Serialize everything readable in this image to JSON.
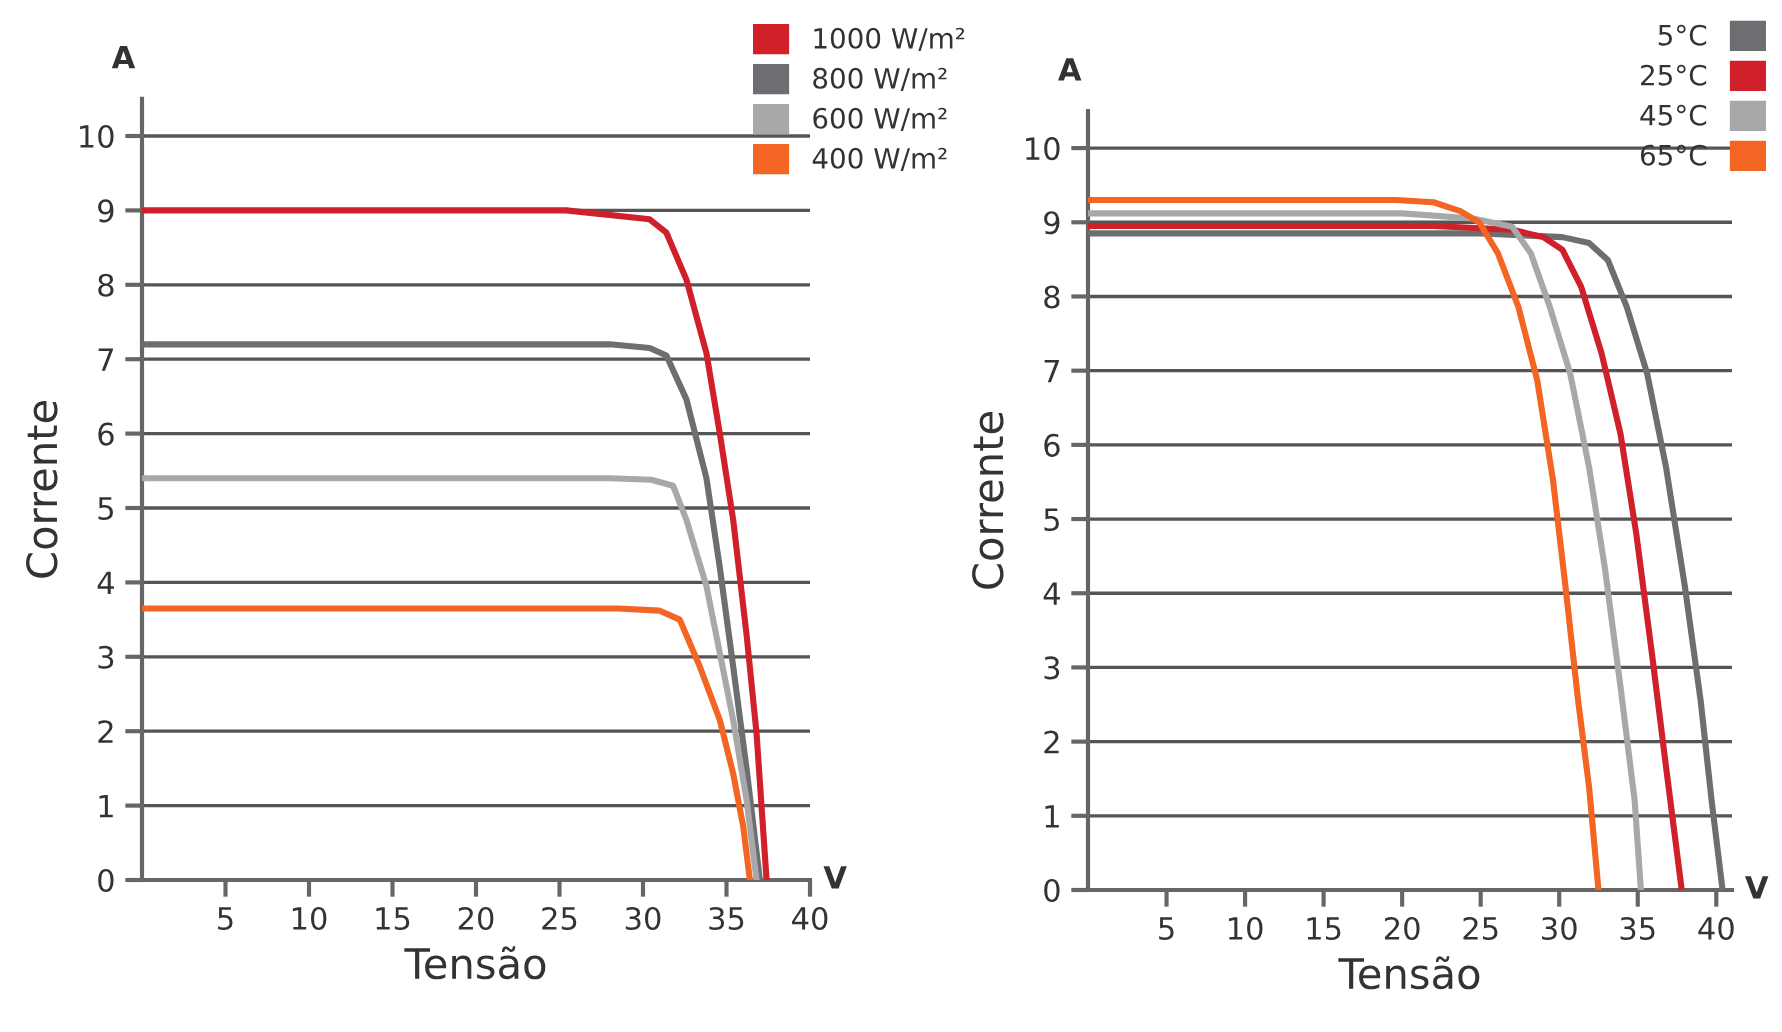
{
  "chart_data": [
    {
      "type": "line",
      "xlabel": "Tensão",
      "ylabel": "Corrente",
      "annotations": [
        "A",
        "V"
      ],
      "xlim": [
        0,
        40
      ],
      "ylim": [
        0,
        10.5
      ],
      "xticks": [
        5,
        10,
        15,
        20,
        25,
        30,
        35,
        40
      ],
      "yticks": [
        0,
        1,
        2,
        3,
        4,
        5,
        6,
        7,
        8,
        9,
        10
      ],
      "grid": "y",
      "legend": "top right",
      "marker": "none",
      "line_style": "solid",
      "series": [
        {
          "name": "1000 W/m²",
          "color": "#d0202a",
          "x": [
            0,
            25.4,
            30.4,
            31.4,
            32.6,
            33.8,
            34.6,
            35.4,
            36.2,
            36.8,
            37.4
          ],
          "values": [
            9.0,
            9.0,
            8.88,
            8.7,
            8.07,
            7.08,
            6.0,
            4.84,
            3.3,
            1.97,
            0
          ]
        },
        {
          "name": "800 W/m²",
          "color": "#6d6e71",
          "x": [
            0,
            28,
            30.4,
            31.4,
            32.6,
            33.8,
            34.6,
            35.4,
            36.2,
            37.0
          ],
          "values": [
            7.2,
            7.2,
            7.15,
            7.05,
            6.46,
            5.4,
            4.2,
            2.87,
            1.5,
            0
          ]
        },
        {
          "name": "600 W/m²",
          "color": "#a7a8aa",
          "x": [
            0,
            28,
            30.5,
            31.8,
            32.6,
            33.8,
            34.6,
            35.4,
            36.2,
            36.8
          ],
          "values": [
            5.4,
            5.4,
            5.38,
            5.3,
            4.84,
            3.95,
            3.05,
            2.15,
            1.08,
            0
          ]
        },
        {
          "name": "400 W/m²",
          "color": "#f26522",
          "x": [
            0,
            28.5,
            31.0,
            32.2,
            33.4,
            34.6,
            35.4,
            36.0,
            36.4
          ],
          "values": [
            3.65,
            3.65,
            3.62,
            3.5,
            2.87,
            2.15,
            1.43,
            0.72,
            0
          ]
        }
      ]
    },
    {
      "type": "line",
      "xlabel": "Tensão",
      "ylabel": "Corrente",
      "annotations": [
        "A",
        "V"
      ],
      "xlim": [
        0,
        41
      ],
      "ylim": [
        0,
        10.5
      ],
      "xticks": [
        5,
        10,
        15,
        20,
        25,
        30,
        35,
        40
      ],
      "yticks": [
        0,
        1,
        2,
        3,
        4,
        5,
        6,
        7,
        8,
        9,
        10
      ],
      "grid": "y",
      "legend": "top right",
      "marker": "none",
      "line_style": "solid",
      "series": [
        {
          "name": "5°C",
          "color": "#6d6e71",
          "x": [
            0,
            25,
            30.2,
            31.9,
            33.1,
            34.3,
            35.6,
            36.8,
            38.0,
            39.0,
            39.7,
            40.4
          ],
          "values": [
            8.85,
            8.85,
            8.8,
            8.72,
            8.49,
            7.86,
            6.96,
            5.7,
            4.09,
            2.56,
            1.21,
            0
          ]
        },
        {
          "name": "25°C",
          "color": "#d0202a",
          "x": [
            0,
            22,
            27.0,
            29.0,
            30.2,
            31.4,
            32.7,
            33.9,
            34.9,
            35.9,
            36.8,
            37.8
          ],
          "values": [
            8.95,
            8.95,
            8.9,
            8.8,
            8.63,
            8.13,
            7.23,
            6.15,
            4.81,
            3.19,
            1.66,
            0
          ]
        },
        {
          "name": "45°C",
          "color": "#a7a8aa",
          "x": [
            0,
            20,
            24.5,
            27.0,
            28.2,
            29.4,
            30.7,
            31.9,
            32.9,
            33.9,
            34.8,
            35.2
          ],
          "values": [
            9.12,
            9.12,
            9.05,
            8.94,
            8.58,
            7.86,
            6.96,
            5.7,
            4.35,
            2.74,
            1.21,
            0
          ]
        },
        {
          "name": "65°C",
          "color": "#f26522",
          "x": [
            0,
            15,
            19.6,
            22.0,
            23.7,
            24.9,
            26.1,
            27.4,
            28.6,
            29.6,
            30.4,
            31.2,
            31.9,
            32.5
          ],
          "values": [
            9.3,
            9.3,
            9.3,
            9.27,
            9.15,
            9.0,
            8.58,
            7.86,
            6.87,
            5.53,
            4.09,
            2.56,
            1.39,
            0
          ]
        }
      ]
    }
  ]
}
